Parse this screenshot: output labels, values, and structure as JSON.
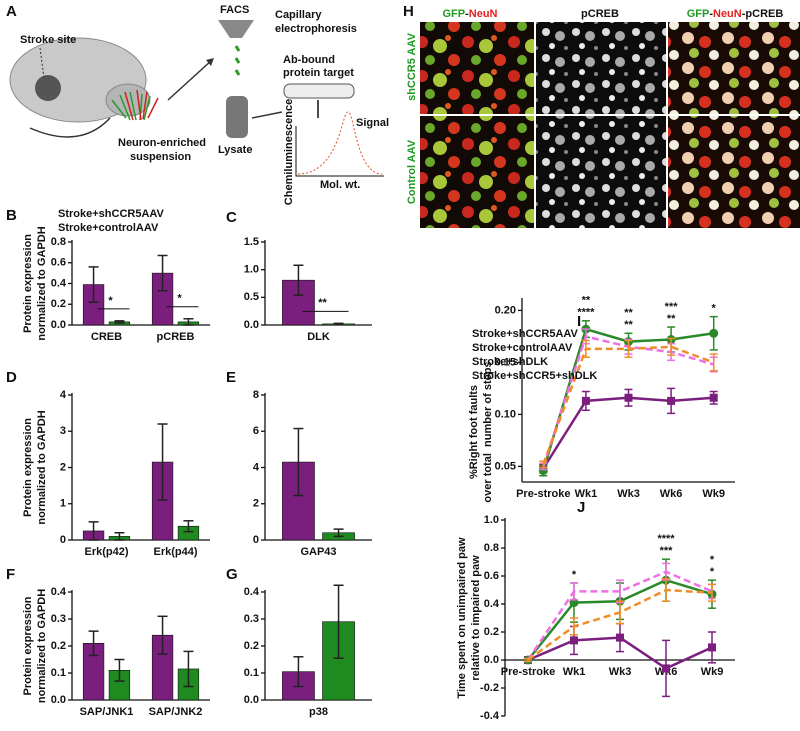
{
  "panel_a": {
    "letter": "A",
    "stroke_site": "Stroke site",
    "suspension": [
      "Neuron-enriched",
      "suspension"
    ],
    "facs": "FACS",
    "ce": [
      "Capillary",
      "electrophoresis"
    ],
    "target": [
      "Ab-bound",
      "protein target"
    ],
    "lysate": "Lysate",
    "signal": "Signal",
    "ylabel": "Chemiluminescence",
    "xlabel": "Mol. wt."
  },
  "panel_h": {
    "letter": "H",
    "headers": [
      [
        "GFP",
        "-",
        "NeuN"
      ],
      [
        "pCREB"
      ],
      [
        "GFP",
        "-",
        "NeuN",
        "-",
        "pCREB"
      ]
    ],
    "rows": [
      "shCCR5 AAV",
      "Control AAV"
    ]
  },
  "chart_data": [
    {
      "type": "bar",
      "panel": "B",
      "ylabel": [
        "Protein expression",
        "normalized to GAPDH"
      ],
      "categories": [
        "CREB",
        "pCREB"
      ],
      "series": [
        {
          "name": "Stroke+shCCR5AAV",
          "color": "#7b1f7e",
          "values": [
            0.39,
            0.5
          ],
          "errors": [
            0.17,
            0.17
          ]
        },
        {
          "name": "Stroke+controlAAV",
          "color": "#1f8a1f",
          "values": [
            0.03,
            0.03
          ],
          "errors": [
            0.01,
            0.03
          ]
        }
      ],
      "ylim": [
        0,
        0.8
      ],
      "yticks": [
        {
          "value": 0,
          "label": "0.0"
        },
        0.2,
        0.4,
        0.6,
        0.8
      ],
      "legend": true,
      "annotations": [
        {
          "text": "*",
          "category": "CREB",
          "color": "#7b1f7e"
        },
        {
          "text": "*",
          "category": "pCREB",
          "color": "#7b1f7e"
        }
      ]
    },
    {
      "type": "bar",
      "panel": "C",
      "categories": [
        "DLK"
      ],
      "series": [
        {
          "color": "#7b1f7e",
          "values": [
            0.81
          ],
          "errors": [
            0.27
          ]
        },
        {
          "color": "#1f8a1f",
          "values": [
            0.02
          ],
          "errors": [
            0.01
          ]
        }
      ],
      "ylim": [
        0,
        1.5
      ],
      "yticks": [
        {
          "value": 0,
          "label": "0.0"
        },
        0.5,
        {
          "value": 1,
          "label": "1.0"
        },
        1.5
      ],
      "annotations": [
        {
          "text": "**",
          "category": "DLK",
          "color": "#7b1f7e"
        }
      ]
    },
    {
      "type": "bar",
      "panel": "D",
      "ylabel": [
        "Protein expression",
        "normalized to GAPDH"
      ],
      "categories": [
        "Erk(p42)",
        "Erk(p44)"
      ],
      "series": [
        {
          "color": "#7b1f7e",
          "values": [
            0.25,
            2.15
          ],
          "errors": [
            0.25,
            1.05
          ]
        },
        {
          "color": "#1f8a1f",
          "values": [
            0.1,
            0.38
          ],
          "errors": [
            0.1,
            0.15
          ]
        }
      ],
      "ylim": [
        0,
        4
      ],
      "yticks": [
        0,
        1,
        2,
        3,
        4
      ]
    },
    {
      "type": "bar",
      "panel": "E",
      "categories": [
        "GAP43"
      ],
      "series": [
        {
          "color": "#7b1f7e",
          "values": [
            4.3
          ],
          "errors": [
            1.85
          ]
        },
        {
          "color": "#1f8a1f",
          "values": [
            0.4
          ],
          "errors": [
            0.2
          ]
        }
      ],
      "ylim": [
        0,
        8
      ],
      "yticks": [
        0,
        2,
        4,
        6,
        8
      ]
    },
    {
      "type": "bar",
      "panel": "F",
      "ylabel": [
        "Protein expression",
        "normalized to GAPDH"
      ],
      "categories": [
        "SAP/JNK1",
        "SAP/JNK2"
      ],
      "series": [
        {
          "color": "#7b1f7e",
          "values": [
            0.21,
            0.24
          ],
          "errors": [
            0.045,
            0.07
          ]
        },
        {
          "color": "#1f8a1f",
          "values": [
            0.11,
            0.115
          ],
          "errors": [
            0.04,
            0.065
          ]
        }
      ],
      "ylim": [
        0,
        0.4
      ],
      "yticks": [
        {
          "value": 0,
          "label": "0.0"
        },
        0.1,
        0.2,
        0.3,
        0.4
      ]
    },
    {
      "type": "bar",
      "panel": "G",
      "categories": [
        "p38"
      ],
      "series": [
        {
          "color": "#7b1f7e",
          "values": [
            0.105
          ],
          "errors": [
            0.055
          ]
        },
        {
          "color": "#1f8a1f",
          "values": [
            0.29
          ],
          "errors": [
            0.135
          ]
        }
      ],
      "ylim": [
        0,
        0.4
      ],
      "yticks": [
        {
          "value": 0,
          "label": "0.0"
        },
        0.1,
        0.2,
        0.3,
        0.4
      ]
    },
    {
      "type": "line",
      "panel": "I",
      "ylabel": [
        "%Right foot faults",
        "over total  number of steps"
      ],
      "categories": [
        "Pre-stroke",
        "Wk1",
        "Wk3",
        "Wk6",
        "Wk9"
      ],
      "series": [
        {
          "name": "Stroke+shCCR5AAV",
          "color": "#7b1f7e",
          "marker": "square",
          "values": [
            0.048,
            0.113,
            0.116,
            0.113,
            0.116
          ],
          "errors": [
            0.004,
            0.009,
            0.008,
            0.012,
            0.006
          ]
        },
        {
          "name": "Stroke+controlAAV",
          "color": "#2a8a2a",
          "marker": "circle",
          "values": [
            0.046,
            0.182,
            0.17,
            0.172,
            0.178
          ],
          "errors": [
            0.005,
            0.008,
            0.008,
            0.012,
            0.016
          ]
        },
        {
          "name": "Stroke+shDLK",
          "color": "#f06ee6",
          "dash": true,
          "values": [
            0.05,
            0.175,
            0.165,
            0.16,
            0.148
          ],
          "errors": [
            0.003,
            0.007,
            0.007,
            0.008,
            0.007
          ]
        },
        {
          "name": "Stroke+shCCR5+shDLK",
          "color": "#f08c2a",
          "dash": true,
          "values": [
            0.052,
            0.163,
            0.163,
            0.165,
            0.15
          ],
          "errors": [
            0.003,
            0.008,
            0.008,
            0.008,
            0.008
          ]
        }
      ],
      "ylim": [
        0.035,
        0.21
      ],
      "yticks": [
        0.05,
        {
          "value": 0.1,
          "label": "0.10"
        },
        0.15,
        {
          "value": 0.2,
          "label": "0.20"
        }
      ],
      "legend": true,
      "annotations": [
        {
          "text": "**",
          "category": "Wk1",
          "color": "#f08c2a"
        },
        {
          "text": "****",
          "category": "Wk1",
          "color": "#f06ee6"
        },
        {
          "text": "**",
          "category": "Wk3",
          "color": "#f08c2a"
        },
        {
          "text": "**",
          "category": "Wk3",
          "color": "#f06ee6"
        },
        {
          "text": "***",
          "category": "Wk6",
          "color": "#f08c2a"
        },
        {
          "text": "**",
          "category": "Wk6",
          "color": "#f06ee6"
        },
        {
          "text": "*",
          "category": "Wk9",
          "color": "#f06ee6"
        }
      ]
    },
    {
      "type": "line",
      "panel": "J",
      "ylabel": [
        "Time spent on unimpaired paw",
        "relative to impaired paw"
      ],
      "categories": [
        "Pre-stroke",
        "Wk1",
        "Wk3",
        "Wk6",
        "Wk9"
      ],
      "series": [
        {
          "color": "#7b1f7e",
          "marker": "square",
          "values": [
            0,
            0.14,
            0.16,
            -0.06,
            0.09
          ],
          "errors": [
            0.01,
            0.1,
            0.1,
            0.2,
            0.11
          ]
        },
        {
          "color": "#2a8a2a",
          "marker": "circle",
          "values": [
            0,
            0.41,
            0.42,
            0.57,
            0.47
          ],
          "errors": [
            0.01,
            0.14,
            0.13,
            0.15,
            0.1
          ]
        },
        {
          "color": "#f06ee6",
          "dash": true,
          "values": [
            0,
            0.49,
            0.49,
            0.63,
            0.49
          ],
          "errors": [
            0.01,
            0.06,
            0.08,
            0.06,
            0.05
          ]
        },
        {
          "color": "#f08c2a",
          "dash": true,
          "values": [
            0,
            0.24,
            0.34,
            0.5,
            0.48
          ],
          "errors": [
            0.01,
            0.06,
            0.08,
            0.08,
            0.06
          ]
        }
      ],
      "ylim": [
        -0.4,
        1.0
      ],
      "yticks": [
        -0.4,
        -0.2,
        {
          "value": 0,
          "label": "0.0"
        },
        0.2,
        0.4,
        0.6,
        0.8,
        {
          "value": 1,
          "label": "1.0"
        }
      ],
      "annotations": [
        {
          "text": "*",
          "category": "Wk1",
          "color": "#f06ee6"
        },
        {
          "text": "****",
          "category": "Wk6",
          "color": "#f06ee6"
        },
        {
          "text": "***",
          "category": "Wk6",
          "color": "#f08c2a"
        },
        {
          "text": "*",
          "category": "Wk9",
          "color": "#f06ee6"
        },
        {
          "text": "*",
          "category": "Wk9",
          "color": "#f08c2a"
        }
      ]
    }
  ]
}
